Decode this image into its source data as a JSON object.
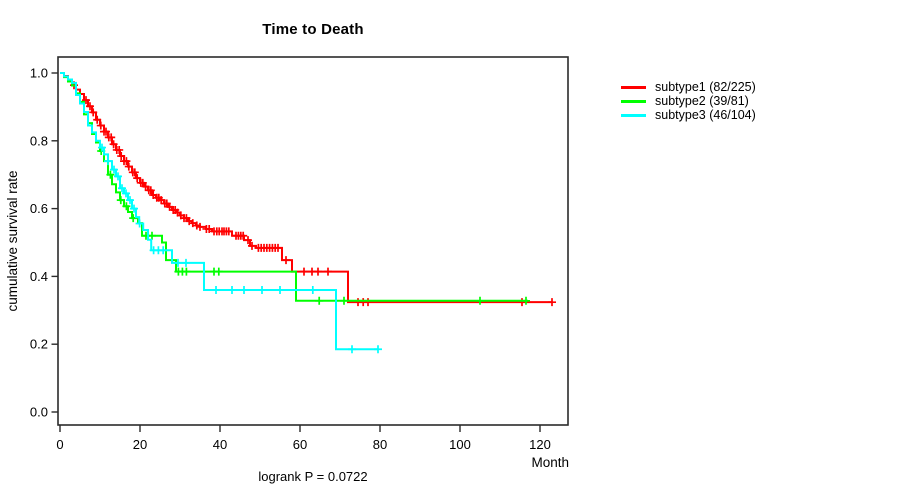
{
  "title": "Time to Death",
  "chart_data": {
    "type": "line",
    "kind": "kaplan-meier-survival",
    "title": "Time to Death",
    "xlabel": "Month",
    "ylabel": "cumulative survival rate",
    "annotation": "logrank P = 0.0722",
    "logrank_p": 0.0722,
    "xlim": [
      0,
      127
    ],
    "ylim": [
      0,
      1
    ],
    "x_ticks": [
      0,
      20,
      40,
      60,
      80,
      100,
      120
    ],
    "y_ticks": [
      0.0,
      0.2,
      0.4,
      0.6,
      0.8,
      1.0
    ],
    "grid": false,
    "legend_position": "right-outside",
    "axis_color": "#2b2b2b",
    "series": [
      {
        "name": "subtype1",
        "label": "subtype1 (82/225)",
        "events": 82,
        "n": 225,
        "color": "#ff0000",
        "steps": [
          [
            0,
            1.0
          ],
          [
            1,
            0.991
          ],
          [
            2,
            0.978
          ],
          [
            3,
            0.964
          ],
          [
            4,
            0.951
          ],
          [
            5,
            0.938
          ],
          [
            6,
            0.92
          ],
          [
            7,
            0.902
          ],
          [
            8,
            0.884
          ],
          [
            9,
            0.862
          ],
          [
            10,
            0.845
          ],
          [
            11,
            0.827
          ],
          [
            12,
            0.81
          ],
          [
            13,
            0.79
          ],
          [
            14,
            0.773
          ],
          [
            15,
            0.755
          ],
          [
            16,
            0.74
          ],
          [
            17,
            0.724
          ],
          [
            18,
            0.707
          ],
          [
            19,
            0.69
          ],
          [
            20,
            0.676
          ],
          [
            21,
            0.665
          ],
          [
            22,
            0.654
          ],
          [
            23,
            0.64
          ],
          [
            24,
            0.632
          ],
          [
            25,
            0.625
          ],
          [
            26,
            0.615
          ],
          [
            27,
            0.605
          ],
          [
            28,
            0.596
          ],
          [
            29,
            0.588
          ],
          [
            30,
            0.58
          ],
          [
            31,
            0.572
          ],
          [
            32,
            0.563
          ],
          [
            33,
            0.557
          ],
          [
            34,
            0.55
          ],
          [
            35,
            0.546
          ],
          [
            36.5,
            0.54
          ],
          [
            38,
            0.533
          ],
          [
            43,
            0.52
          ],
          [
            46,
            0.507
          ],
          [
            47.5,
            0.49
          ],
          [
            49,
            0.484
          ],
          [
            55.5,
            0.448
          ],
          [
            58,
            0.414
          ],
          [
            72,
            0.324
          ],
          [
            123,
            0.324
          ]
        ],
        "censors": [
          3.5,
          5,
          6.5,
          7.5,
          8.3,
          9.3,
          10.2,
          11,
          11.5,
          12.2,
          12.8,
          13.4,
          14.2,
          14.8,
          15.3,
          16,
          16.6,
          17.2,
          18.2,
          18.7,
          19.3,
          20.2,
          20.7,
          21.4,
          22.2,
          22.7,
          23.3,
          24.2,
          24.7,
          25.3,
          26.2,
          26.7,
          27.4,
          28.3,
          28.8,
          29.4,
          30.2,
          31,
          31.6,
          32.3,
          33.2,
          34.2,
          35,
          36.6,
          37.3,
          38.5,
          39.2,
          39.8,
          40.5,
          41,
          41.6,
          42.2,
          44,
          44.6,
          45.2,
          45.8,
          47,
          48,
          49.6,
          50.3,
          51,
          51.7,
          52.4,
          53.1,
          53.8,
          54.5,
          56.5,
          61,
          63,
          64.5,
          67,
          74.5,
          75.8,
          77,
          115.5,
          123
        ]
      },
      {
        "name": "subtype2",
        "label": "subtype2 (39/81)",
        "events": 39,
        "n": 81,
        "color": "#00ff00",
        "steps": [
          [
            0,
            1.0
          ],
          [
            1,
            0.988
          ],
          [
            2,
            0.975
          ],
          [
            3,
            0.963
          ],
          [
            4,
            0.94
          ],
          [
            5,
            0.915
          ],
          [
            6,
            0.878
          ],
          [
            7,
            0.852
          ],
          [
            8,
            0.82
          ],
          [
            9,
            0.795
          ],
          [
            10,
            0.77
          ],
          [
            11,
            0.74
          ],
          [
            12,
            0.7
          ],
          [
            13,
            0.672
          ],
          [
            14,
            0.648
          ],
          [
            15,
            0.625
          ],
          [
            16,
            0.607
          ],
          [
            17,
            0.59
          ],
          [
            18,
            0.572
          ],
          [
            19.5,
            0.557
          ],
          [
            20.5,
            0.52
          ],
          [
            25.5,
            0.5
          ],
          [
            26.5,
            0.448
          ],
          [
            29,
            0.414
          ],
          [
            59,
            0.328
          ],
          [
            117,
            0.328
          ]
        ],
        "censors": [
          10.3,
          12.6,
          15.2,
          16.6,
          18.3,
          21.5,
          23,
          29.6,
          30.6,
          31.6,
          38.5,
          39.7,
          64.8,
          71,
          105,
          116.5
        ]
      },
      {
        "name": "subtype3",
        "label": "subtype3 (46/104)",
        "events": 46,
        "n": 104,
        "color": "#00ffff",
        "steps": [
          [
            0,
            1.0
          ],
          [
            1,
            0.99
          ],
          [
            2,
            0.981
          ],
          [
            3,
            0.971
          ],
          [
            4,
            0.935
          ],
          [
            5,
            0.91
          ],
          [
            6,
            0.885
          ],
          [
            7,
            0.845
          ],
          [
            8,
            0.825
          ],
          [
            9,
            0.8
          ],
          [
            10,
            0.78
          ],
          [
            11,
            0.76
          ],
          [
            12,
            0.74
          ],
          [
            13,
            0.715
          ],
          [
            14,
            0.695
          ],
          [
            15,
            0.66
          ],
          [
            16,
            0.645
          ],
          [
            17,
            0.625
          ],
          [
            18,
            0.6
          ],
          [
            19,
            0.575
          ],
          [
            19.8,
            0.556
          ],
          [
            20.8,
            0.537
          ],
          [
            22,
            0.508
          ],
          [
            22.8,
            0.477
          ],
          [
            28,
            0.44
          ],
          [
            36,
            0.36
          ],
          [
            69,
            0.185
          ],
          [
            79.5,
            0.185
          ]
        ],
        "censors": [
          10.5,
          12,
          13.5,
          14.5,
          15.5,
          16.5,
          17.5,
          18.5,
          19.9,
          23.4,
          24.6,
          25.8,
          29.5,
          31.5,
          39,
          43,
          46,
          50.5,
          55,
          63.2,
          73,
          79.5
        ]
      }
    ]
  }
}
